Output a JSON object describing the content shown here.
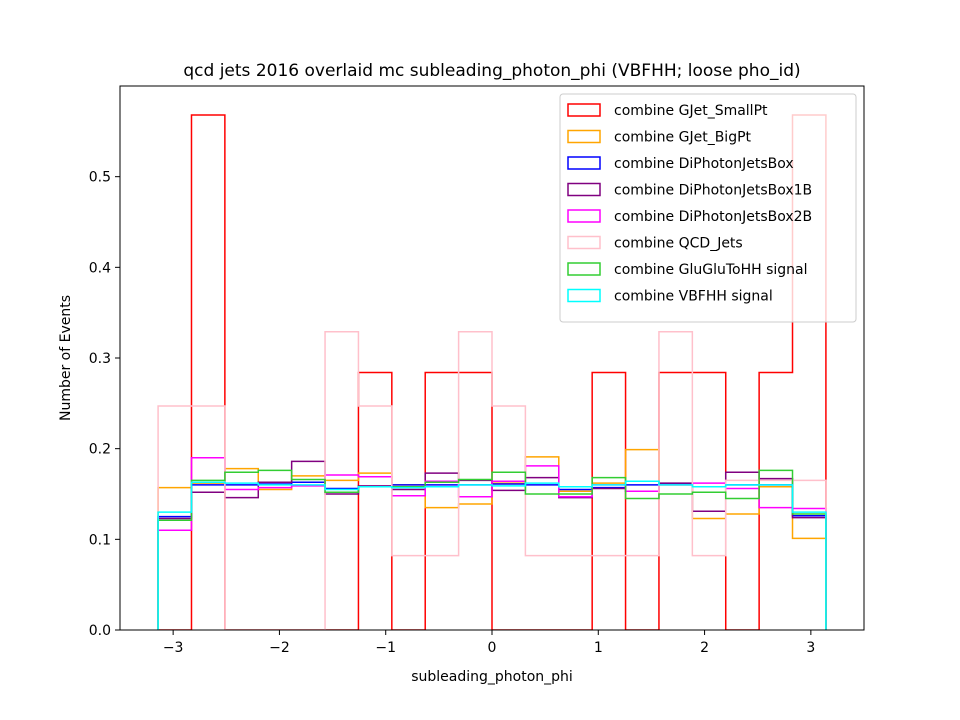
{
  "chart_data": {
    "type": "line",
    "style": "step-histogram",
    "title": "qcd jets 2016 overlaid mc subleading_photon_phi (VBFHH; loose pho_id)",
    "xlabel": "subleading_photon_phi",
    "ylabel": "Number of Events",
    "xlim": [
      -3.5,
      3.5
    ],
    "ylim": [
      0,
      0.6
    ],
    "xticks": [
      -3,
      -2,
      -1,
      0,
      1,
      2,
      3
    ],
    "xtick_labels": [
      "−3",
      "−2",
      "−1",
      "0",
      "1",
      "2",
      "3"
    ],
    "yticks": [
      0.0,
      0.1,
      0.2,
      0.3,
      0.4,
      0.5
    ],
    "ytick_labels": [
      "0.0",
      "0.1",
      "0.2",
      "0.3",
      "0.4",
      "0.5"
    ],
    "legend_position": "top-right",
    "grid": false,
    "bin_edges": [
      -3.1416,
      -2.8274,
      -2.5133,
      -2.1991,
      -1.885,
      -1.5708,
      -1.2566,
      -0.9425,
      -0.6283,
      -0.3142,
      0.0,
      0.3142,
      0.6283,
      0.9425,
      1.2566,
      1.5708,
      1.885,
      2.1991,
      2.5133,
      2.8274,
      3.1416
    ],
    "series": [
      {
        "name": "combine GJet_SmallPt",
        "color": "#ff0000",
        "values": [
          0.0,
          0.568,
          0.0,
          0.0,
          0.0,
          0.0,
          0.284,
          0.0,
          0.284,
          0.284,
          0.0,
          0.0,
          0.0,
          0.284,
          0.0,
          0.284,
          0.284,
          0.0,
          0.284,
          0.568
        ]
      },
      {
        "name": "combine GJet_BigPt",
        "color": "#ffa500",
        "values": [
          0.157,
          0.162,
          0.178,
          0.155,
          0.17,
          0.165,
          0.173,
          0.16,
          0.135,
          0.139,
          0.162,
          0.191,
          0.153,
          0.162,
          0.199,
          0.16,
          0.123,
          0.128,
          0.158,
          0.101
        ]
      },
      {
        "name": "combine DiPhotonJetsBox",
        "color": "#0000ff",
        "values": [
          0.125,
          0.16,
          0.16,
          0.161,
          0.163,
          0.156,
          0.158,
          0.16,
          0.16,
          0.16,
          0.161,
          0.16,
          0.155,
          0.157,
          0.16,
          0.161,
          0.158,
          0.16,
          0.16,
          0.126
        ]
      },
      {
        "name": "combine DiPhotonJetsBox1B",
        "color": "#800080",
        "values": [
          0.123,
          0.152,
          0.146,
          0.163,
          0.186,
          0.15,
          0.159,
          0.155,
          0.173,
          0.165,
          0.154,
          0.168,
          0.146,
          0.156,
          0.153,
          0.162,
          0.131,
          0.174,
          0.167,
          0.124
        ]
      },
      {
        "name": "combine DiPhotonJetsBox2B",
        "color": "#ff00ff",
        "values": [
          0.11,
          0.19,
          0.155,
          0.157,
          0.159,
          0.171,
          0.169,
          0.148,
          0.164,
          0.147,
          0.164,
          0.181,
          0.147,
          0.16,
          0.153,
          0.16,
          0.162,
          0.156,
          0.135,
          0.134
        ]
      },
      {
        "name": "combine QCD_Jets",
        "color": "#ffc0cb",
        "values": [
          0.247,
          0.247,
          0.0,
          0.0,
          0.0,
          0.329,
          0.247,
          0.082,
          0.082,
          0.329,
          0.247,
          0.082,
          0.082,
          0.082,
          0.082,
          0.329,
          0.082,
          0.165,
          0.165,
          0.165
        ]
      },
      {
        "name": "combine GluGluToHH signal",
        "color": "#32cd32",
        "values": [
          0.121,
          0.165,
          0.174,
          0.176,
          0.166,
          0.152,
          0.158,
          0.158,
          0.163,
          0.166,
          0.174,
          0.15,
          0.15,
          0.168,
          0.145,
          0.15,
          0.152,
          0.145,
          0.176,
          0.128
        ]
      },
      {
        "name": "combine VBFHH signal",
        "color": "#00ffff",
        "values": [
          0.13,
          0.163,
          0.162,
          0.16,
          0.16,
          0.155,
          0.158,
          0.157,
          0.158,
          0.16,
          0.159,
          0.162,
          0.158,
          0.16,
          0.164,
          0.16,
          0.158,
          0.16,
          0.16,
          0.13
        ]
      }
    ]
  }
}
